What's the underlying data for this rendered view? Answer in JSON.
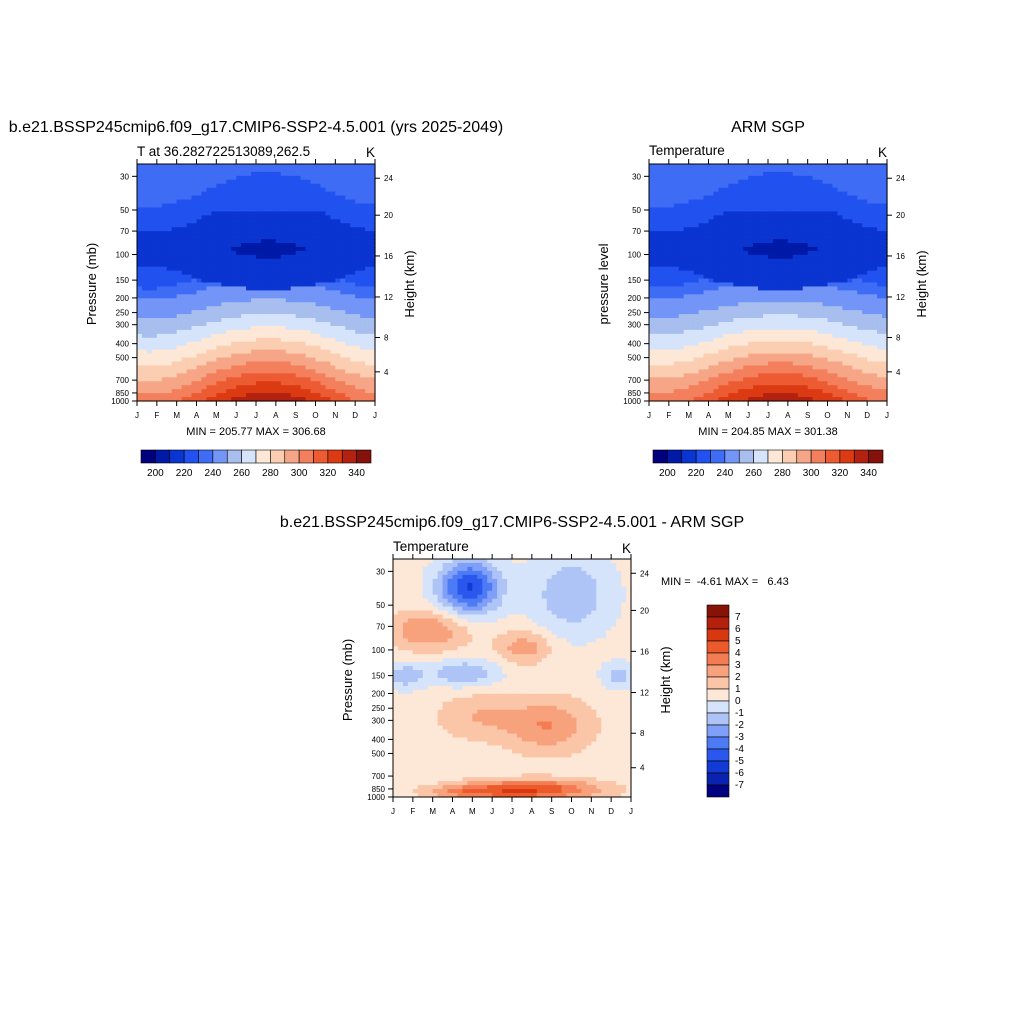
{
  "colors": {
    "abs_palette": [
      "#00007f",
      "#001aa8",
      "#0b35d1",
      "#2152f0",
      "#3f6cf4",
      "#7395f7",
      "#a7beee",
      "#d6e4fb",
      "#fde7d6",
      "#fbcdb1",
      "#f6a686",
      "#f37f5c",
      "#ed5b33",
      "#db3a12",
      "#b32211",
      "#84120b"
    ],
    "diff_palette": [
      "#000080",
      "#0a22b0",
      "#123ad4",
      "#2a58ee",
      "#4d7bf5",
      "#7f9ff8",
      "#aec4f7",
      "#d6e4fb",
      "#fde7d6",
      "#fbc5a8",
      "#f8a27d",
      "#f47c52",
      "#ec5a2c",
      "#d8380f",
      "#b3200c",
      "#861208"
    ]
  },
  "chart_data": [
    {
      "type": "heatmap",
      "title": "b.e21.BSSP245cmip6.f09_g17.CMIP6-SSP2-4.5.001 (yrs 2025-2049)",
      "left_label": "T at 36.282722513089,262.5",
      "right_label": "K",
      "ylabel": "Pressure (mb)",
      "y2label": "Height (km)",
      "x_ticks": [
        "J",
        "F",
        "M",
        "A",
        "M",
        "J",
        "J",
        "A",
        "S",
        "O",
        "N",
        "D",
        "J"
      ],
      "y_ticks": [
        30,
        50,
        70,
        100,
        150,
        200,
        250,
        300,
        400,
        500,
        700,
        850,
        1000
      ],
      "y2_ticks": [
        24,
        20,
        16,
        12,
        8,
        4
      ],
      "stats": "MIN = 205.77 MAX = 306.68",
      "min": 205.77,
      "max": 306.68,
      "levels": [
        195,
        200,
        205,
        210,
        220,
        230,
        240,
        250,
        255,
        260,
        265,
        270,
        275,
        280,
        285,
        290,
        295,
        300,
        305,
        310,
        320,
        330,
        340,
        350
      ],
      "colorbar_labels": [
        "200",
        "220",
        "240",
        "260",
        "280",
        "300",
        "320",
        "340"
      ]
    },
    {
      "type": "heatmap",
      "title": "ARM SGP",
      "left_label": "Temperature",
      "right_label": "K",
      "ylabel": "pressure level",
      "y2label": "Height (km)",
      "x_ticks": [
        "J",
        "F",
        "M",
        "A",
        "M",
        "J",
        "J",
        "A",
        "S",
        "O",
        "N",
        "D",
        "J"
      ],
      "y_ticks": [
        30,
        50,
        70,
        100,
        150,
        200,
        250,
        300,
        400,
        500,
        700,
        850,
        1000
      ],
      "y2_ticks": [
        24,
        20,
        16,
        12,
        8,
        4
      ],
      "stats": "MIN = 204.85 MAX = 301.38",
      "min": 204.85,
      "max": 301.38,
      "colorbar_labels": [
        "200",
        "220",
        "240",
        "260",
        "280",
        "300",
        "320",
        "340"
      ]
    },
    {
      "type": "heatmap",
      "title": "b.e21.BSSP245cmip6.f09_g17.CMIP6-SSP2-4.5.001 - ARM SGP",
      "left_label": "Temperature",
      "right_label": "K",
      "ylabel": "Pressure (mb)",
      "y2label": "Height (km)",
      "x_ticks": [
        "J",
        "F",
        "M",
        "A",
        "M",
        "J",
        "J",
        "A",
        "S",
        "O",
        "N",
        "D",
        "J"
      ],
      "y_ticks": [
        30,
        50,
        70,
        100,
        150,
        200,
        250,
        300,
        400,
        500,
        700,
        850,
        1000
      ],
      "y2_ticks": [
        24,
        20,
        16,
        12,
        8,
        4
      ],
      "stats": "MIN =  -4.61 MAX =   6.43",
      "min": -4.61,
      "max": 6.43,
      "colorbar_labels": [
        "7",
        "6",
        "5",
        "4",
        "3",
        "2",
        "1",
        "0",
        "-1",
        "-2",
        "-3",
        "-4",
        "-5",
        "-6",
        "-7"
      ]
    }
  ]
}
